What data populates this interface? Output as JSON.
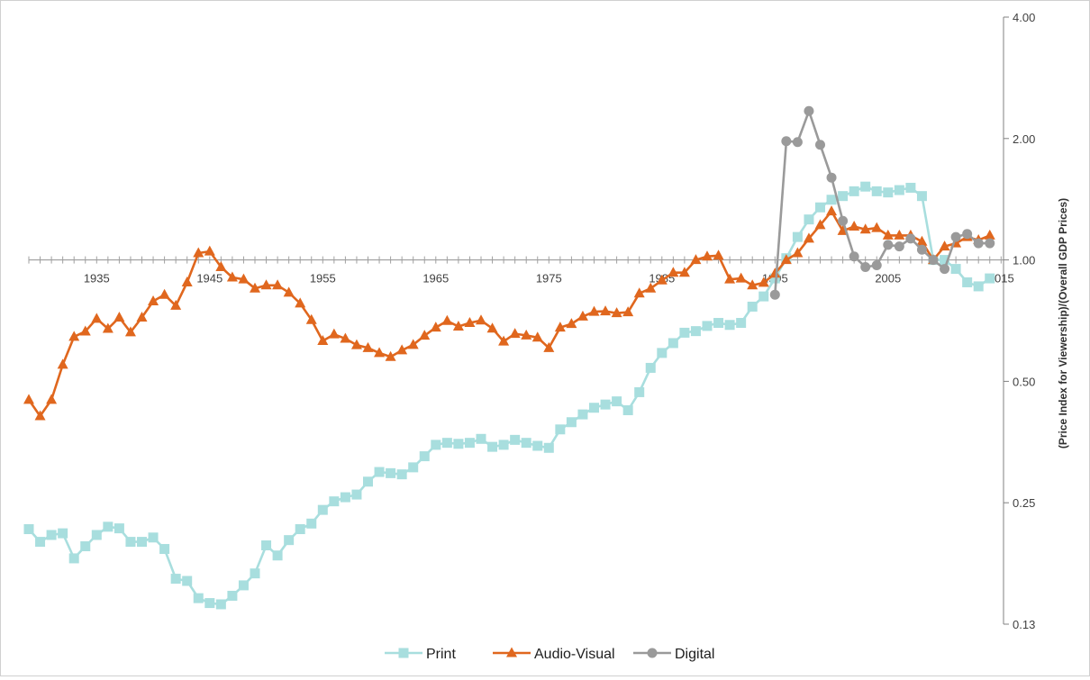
{
  "chart_data": {
    "type": "line",
    "title": "",
    "xlabel": "",
    "ylabel": "(Price Index for Viewership)/(Overall GDP Prices)",
    "y_scale": "log2",
    "ylim": [
      0.125,
      4.0
    ],
    "y_ticks": [
      "0.13",
      "0.25",
      "0.50",
      "1.00",
      "2.00",
      "4.00"
    ],
    "x_ticks": [
      "1935",
      "1945",
      "1955",
      "1965",
      "1975",
      "1985",
      "1995",
      "2005",
      "2015"
    ],
    "x_axis_crosses_at": 1.0,
    "grid": false,
    "legend_position": "bottom",
    "x": [
      1929,
      1930,
      1931,
      1932,
      1933,
      1934,
      1935,
      1936,
      1937,
      1938,
      1939,
      1940,
      1941,
      1942,
      1943,
      1944,
      1945,
      1946,
      1947,
      1948,
      1949,
      1950,
      1951,
      1952,
      1953,
      1954,
      1955,
      1956,
      1957,
      1958,
      1959,
      1960,
      1961,
      1962,
      1963,
      1964,
      1965,
      1966,
      1967,
      1968,
      1969,
      1970,
      1971,
      1972,
      1973,
      1974,
      1975,
      1976,
      1977,
      1978,
      1979,
      1980,
      1981,
      1982,
      1983,
      1984,
      1985,
      1986,
      1987,
      1988,
      1989,
      1990,
      1991,
      1992,
      1993,
      1994,
      1995,
      1996,
      1997,
      1998,
      1999,
      2000,
      2001,
      2002,
      2003,
      2004,
      2005,
      2006,
      2007,
      2008,
      2009,
      2010,
      2011,
      2012,
      2013,
      2014
    ],
    "series": [
      {
        "name": "Print",
        "color": "#a8dede",
        "marker": "square",
        "values": [
          0.215,
          0.2,
          0.208,
          0.21,
          0.182,
          0.195,
          0.208,
          0.218,
          0.216,
          0.2,
          0.2,
          0.205,
          0.192,
          0.162,
          0.16,
          0.145,
          0.141,
          0.14,
          0.147,
          0.156,
          0.167,
          0.196,
          0.185,
          0.202,
          0.215,
          0.222,
          0.24,
          0.252,
          0.258,
          0.262,
          0.282,
          0.298,
          0.296,
          0.294,
          0.306,
          0.326,
          0.348,
          0.352,
          0.35,
          0.352,
          0.36,
          0.344,
          0.348,
          0.358,
          0.352,
          0.346,
          0.342,
          0.38,
          0.396,
          0.414,
          0.43,
          0.438,
          0.446,
          0.424,
          0.47,
          0.54,
          0.588,
          0.622,
          0.66,
          0.666,
          0.686,
          0.698,
          0.69,
          0.698,
          0.766,
          0.812,
          0.9,
          1.01,
          1.14,
          1.26,
          1.35,
          1.41,
          1.44,
          1.48,
          1.52,
          1.48,
          1.47,
          1.49,
          1.51,
          1.44,
          1.0,
          1.0,
          0.95,
          0.88,
          0.86,
          0.9
        ]
      },
      {
        "name": "Audio-Visual",
        "color": "#e0671e",
        "marker": "triangle",
        "values": [
          0.45,
          0.41,
          0.45,
          0.55,
          0.645,
          0.665,
          0.715,
          0.675,
          0.72,
          0.662,
          0.72,
          0.79,
          0.82,
          0.77,
          0.88,
          1.04,
          1.05,
          0.96,
          0.905,
          0.895,
          0.85,
          0.865,
          0.865,
          0.83,
          0.78,
          0.71,
          0.63,
          0.654,
          0.638,
          0.615,
          0.605,
          0.588,
          0.575,
          0.597,
          0.616,
          0.649,
          0.68,
          0.706,
          0.684,
          0.698,
          0.708,
          0.676,
          0.628,
          0.656,
          0.65,
          0.642,
          0.605,
          0.68,
          0.694,
          0.724,
          0.744,
          0.746,
          0.738,
          0.742,
          0.826,
          0.85,
          0.89,
          0.93,
          0.93,
          1.0,
          1.02,
          1.025,
          0.895,
          0.9,
          0.865,
          0.878,
          0.925,
          1.0,
          1.04,
          1.13,
          1.22,
          1.32,
          1.18,
          1.21,
          1.19,
          1.2,
          1.15,
          1.15,
          1.15,
          1.11,
          1.0,
          1.08,
          1.1,
          1.14,
          1.12,
          1.15
        ]
      },
      {
        "name": "Digital",
        "color": "#9a9a9a",
        "marker": "circle",
        "x": [
          1995,
          1996,
          1997,
          1998,
          1999,
          2000,
          2001,
          2002,
          2003,
          2004,
          2005,
          2006,
          2007,
          2008,
          2009,
          2010,
          2011,
          2012,
          2013,
          2014
        ],
        "values": [
          0.82,
          1.97,
          1.96,
          2.34,
          1.93,
          1.6,
          1.25,
          1.02,
          0.96,
          0.97,
          1.09,
          1.08,
          1.13,
          1.06,
          1.0,
          0.95,
          1.14,
          1.16,
          1.1,
          1.1
        ]
      }
    ]
  }
}
